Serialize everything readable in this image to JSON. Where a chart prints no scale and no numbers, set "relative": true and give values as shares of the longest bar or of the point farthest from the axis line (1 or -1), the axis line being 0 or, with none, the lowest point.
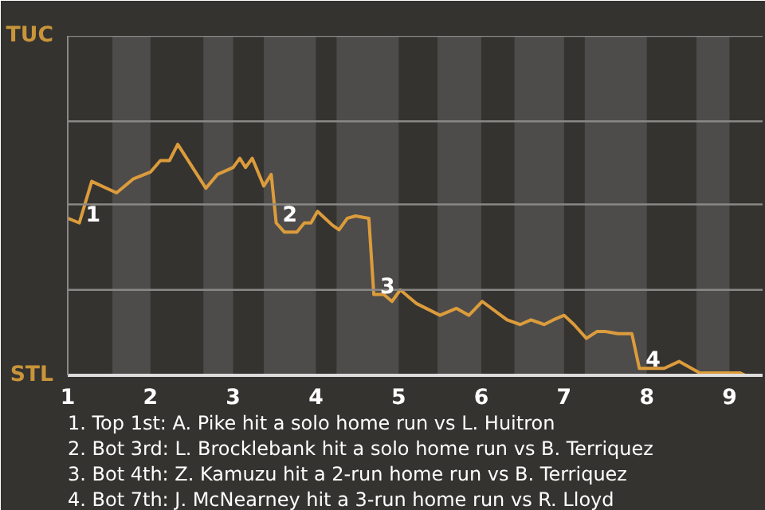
{
  "chart_data": {
    "type": "line",
    "relative": true,
    "x": [
      1,
      1.14,
      1.29,
      1.59,
      1.79,
      2,
      2.12,
      2.23,
      2.33,
      2.67,
      2.81,
      3,
      3.08,
      3.15,
      3.23,
      3.37,
      3.46,
      3.52,
      3.62,
      3.77,
      3.86,
      3.94,
      4.02,
      4.11,
      4.2,
      4.28,
      4.38,
      4.48,
      4.64,
      4.7,
      4.82,
      4.92,
      5.02,
      5.22,
      5.5,
      5.7,
      5.85,
      6.01,
      6.31,
      6.47,
      6.6,
      6.76,
      6.87,
      7,
      7.12,
      7.27,
      7.4,
      7.5,
      7.65,
      7.82,
      7.91,
      8.04,
      8.21,
      8.39,
      8.64,
      9.13,
      9.19,
      9.4
    ],
    "series": [
      {
        "color": "#dc9c3c",
        "values": [
          0.68,
          0.66,
          0.84,
          0.79,
          0.85,
          0.88,
          0.93,
          0.93,
          1,
          0.81,
          0.87,
          0.9,
          0.94,
          0.9,
          0.94,
          0.82,
          0.87,
          0.66,
          0.62,
          0.62,
          0.66,
          0.66,
          0.71,
          0.68,
          0.65,
          0.63,
          0.68,
          0.69,
          0.68,
          0.35,
          0.35,
          0.32,
          0.37,
          0.31,
          0.26,
          0.29,
          0.26,
          0.32,
          0.24,
          0.22,
          0.24,
          0.22,
          0.24,
          0.26,
          0.22,
          0.16,
          0.19,
          0.19,
          0.18,
          0.18,
          0.03,
          0.03,
          0.03,
          0.06,
          0.01,
          0.01,
          0,
          0
        ]
      }
    ],
    "xlim": [
      1,
      9.4
    ],
    "xticks": [
      1,
      2,
      3,
      4,
      5,
      6,
      7,
      8,
      9
    ],
    "marker": "none",
    "line_style": "solid",
    "ref_lines": [
      {
        "axis": "y",
        "value": 0.37,
        "color": "#8a8885"
      },
      {
        "axis": "y",
        "value": 0.74,
        "color": "#8a8885"
      },
      {
        "axis": "y",
        "value": 1.1,
        "color": "#8a8885"
      },
      {
        "axis": "y",
        "value": 1.47,
        "color": "#8a8885"
      }
    ],
    "bands": [
      {
        "axis": "x",
        "from": 1.54,
        "to": 2,
        "color": "#4d4c4a"
      },
      {
        "axis": "x",
        "from": 2.64,
        "to": 3,
        "color": "#4d4c4a"
      },
      {
        "axis": "x",
        "from": 3.37,
        "to": 4,
        "color": "#4d4c4a"
      },
      {
        "axis": "x",
        "from": 4.25,
        "to": 5,
        "color": "#4d4c4a"
      },
      {
        "axis": "x",
        "from": 5.47,
        "to": 6,
        "color": "#4d4c4a"
      },
      {
        "axis": "x",
        "from": 6.4,
        "to": 7,
        "color": "#4d4c4a"
      },
      {
        "axis": "x",
        "from": 7.25,
        "to": 8,
        "color": "#4d4c4a"
      },
      {
        "axis": "x",
        "from": 8.6,
        "to": 9,
        "color": "#4d4c4a"
      }
    ],
    "annotations": [
      "TUC",
      "STL",
      {
        "text": "1",
        "x": 1.14,
        "y": 0.66
      },
      {
        "text": "2",
        "x": 3.52,
        "y": 0.66
      },
      {
        "text": "3",
        "x": 4.7,
        "y": 0.35
      },
      {
        "text": "4",
        "x": 7.91,
        "y": 0.03
      },
      "1. Top 1st: A. Pike hit a solo home run vs L. Huitron",
      "2. Bot 3rd: L. Brocklebank hit a solo home run vs B. Terriquez",
      "3. Bot 4th: Z. Kamuzu hit a 2-run home run vs B. Terriquez",
      "4. Bot 7th: J. McNearney hit a 3-run home run vs R. Lloyd"
    ]
  }
}
